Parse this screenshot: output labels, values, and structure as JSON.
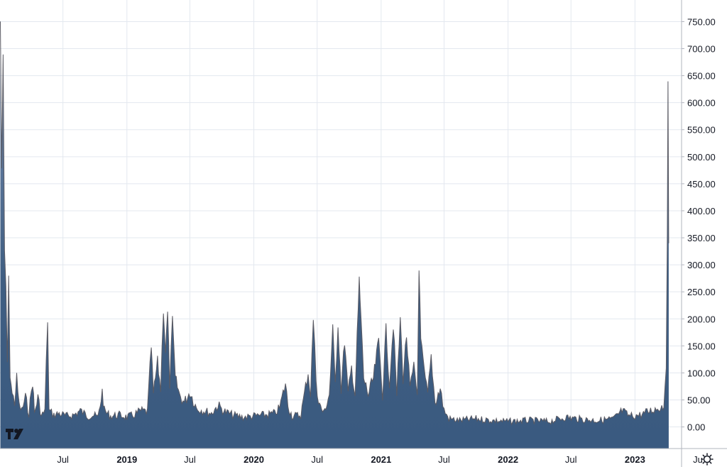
{
  "chart_data": {
    "type": "area",
    "title": "",
    "xlabel": "",
    "ylabel": "",
    "ylim": [
      -40,
      790
    ],
    "xlim": [
      "2018-01-01",
      "2023-05-15"
    ],
    "grid": true,
    "series": [
      {
        "name": "",
        "color": "#3f5e82",
        "line_color": "#5a5a63",
        "points": [
          [
            "2018-01-02",
            750
          ],
          [
            "2018-01-06",
            480
          ],
          [
            "2018-01-10",
            680
          ],
          [
            "2018-01-14",
            320
          ],
          [
            "2018-01-18",
            260
          ],
          [
            "2018-01-22",
            120
          ],
          [
            "2018-01-26",
            270
          ],
          [
            "2018-01-30",
            100
          ],
          [
            "2018-02-05",
            60
          ],
          [
            "2018-02-12",
            45
          ],
          [
            "2018-02-18",
            90
          ],
          [
            "2018-02-25",
            40
          ],
          [
            "2018-03-05",
            30
          ],
          [
            "2018-03-15",
            55
          ],
          [
            "2018-03-25",
            25
          ],
          [
            "2018-04-05",
            85
          ],
          [
            "2018-04-10",
            25
          ],
          [
            "2018-04-20",
            55
          ],
          [
            "2018-04-30",
            20
          ],
          [
            "2018-05-10",
            30
          ],
          [
            "2018-05-18",
            200
          ],
          [
            "2018-05-22",
            30
          ],
          [
            "2018-06-05",
            22
          ],
          [
            "2018-06-20",
            25
          ],
          [
            "2018-07-10",
            20
          ],
          [
            "2018-08-01",
            22
          ],
          [
            "2018-08-20",
            30
          ],
          [
            "2018-09-10",
            20
          ],
          [
            "2018-09-25",
            22
          ],
          [
            "2018-10-10",
            18
          ],
          [
            "2018-10-22",
            65
          ],
          [
            "2018-10-28",
            30
          ],
          [
            "2018-11-15",
            20
          ],
          [
            "2018-12-10",
            22
          ],
          [
            "2019-01-01",
            18
          ],
          [
            "2019-01-20",
            22
          ],
          [
            "2019-02-10",
            30
          ],
          [
            "2019-03-01",
            28
          ],
          [
            "2019-03-12",
            150
          ],
          [
            "2019-03-18",
            60
          ],
          [
            "2019-03-30",
            120
          ],
          [
            "2019-04-08",
            70
          ],
          [
            "2019-04-16",
            220
          ],
          [
            "2019-04-22",
            140
          ],
          [
            "2019-04-28",
            210
          ],
          [
            "2019-05-04",
            80
          ],
          [
            "2019-05-12",
            195
          ],
          [
            "2019-05-20",
            90
          ],
          [
            "2019-06-01",
            60
          ],
          [
            "2019-06-15",
            45
          ],
          [
            "2019-07-01",
            65
          ],
          [
            "2019-07-20",
            35
          ],
          [
            "2019-08-10",
            30
          ],
          [
            "2019-09-01",
            25
          ],
          [
            "2019-09-20",
            40
          ],
          [
            "2019-10-10",
            28
          ],
          [
            "2019-11-01",
            22
          ],
          [
            "2019-12-01",
            18
          ],
          [
            "2020-01-01",
            20
          ],
          [
            "2020-02-01",
            22
          ],
          [
            "2020-03-01",
            25
          ],
          [
            "2020-03-15",
            35
          ],
          [
            "2020-04-01",
            80
          ],
          [
            "2020-04-08",
            40
          ],
          [
            "2020-04-20",
            20
          ],
          [
            "2020-05-15",
            22
          ],
          [
            "2020-06-05",
            100
          ],
          [
            "2020-06-12",
            60
          ],
          [
            "2020-06-20",
            200
          ],
          [
            "2020-06-28",
            90
          ],
          [
            "2020-07-05",
            45
          ],
          [
            "2020-07-20",
            25
          ],
          [
            "2020-08-05",
            60
          ],
          [
            "2020-08-15",
            180
          ],
          [
            "2020-08-22",
            80
          ],
          [
            "2020-08-30",
            190
          ],
          [
            "2020-09-08",
            70
          ],
          [
            "2020-09-18",
            160
          ],
          [
            "2020-09-28",
            60
          ],
          [
            "2020-10-08",
            110
          ],
          [
            "2020-10-18",
            60
          ],
          [
            "2020-10-30",
            270
          ],
          [
            "2020-11-04",
            200
          ],
          [
            "2020-11-12",
            90
          ],
          [
            "2020-11-25",
            60
          ],
          [
            "2020-12-10",
            90
          ],
          [
            "2020-12-25",
            160
          ],
          [
            "2021-01-05",
            60
          ],
          [
            "2021-01-15",
            180
          ],
          [
            "2021-01-25",
            80
          ],
          [
            "2021-02-05",
            190
          ],
          [
            "2021-02-15",
            60
          ],
          [
            "2021-02-25",
            200
          ],
          [
            "2021-03-05",
            90
          ],
          [
            "2021-03-15",
            170
          ],
          [
            "2021-03-25",
            70
          ],
          [
            "2021-04-05",
            110
          ],
          [
            "2021-04-15",
            60
          ],
          [
            "2021-04-20",
            300
          ],
          [
            "2021-04-25",
            160
          ],
          [
            "2021-05-05",
            100
          ],
          [
            "2021-05-15",
            60
          ],
          [
            "2021-05-25",
            130
          ],
          [
            "2021-06-05",
            45
          ],
          [
            "2021-06-20",
            70
          ],
          [
            "2021-07-01",
            30
          ],
          [
            "2021-07-15",
            15
          ],
          [
            "2021-08-15",
            12
          ],
          [
            "2021-10-01",
            15
          ],
          [
            "2021-11-15",
            12
          ],
          [
            "2022-01-01",
            10
          ],
          [
            "2022-03-01",
            12
          ],
          [
            "2022-05-01",
            10
          ],
          [
            "2022-06-15",
            18
          ],
          [
            "2022-08-01",
            14
          ],
          [
            "2022-09-15",
            12
          ],
          [
            "2022-11-01",
            15
          ],
          [
            "2022-11-25",
            30
          ],
          [
            "2022-12-15",
            20
          ],
          [
            "2023-01-15",
            22
          ],
          [
            "2023-02-15",
            30
          ],
          [
            "2023-03-10",
            35
          ],
          [
            "2023-03-25",
            40
          ],
          [
            "2023-04-01",
            120
          ],
          [
            "2023-04-04",
            340
          ],
          [
            "2023-04-06",
            630
          ],
          [
            "2023-04-08",
            340
          ]
        ]
      }
    ],
    "y_ticks": [
      "0.00",
      "50.00",
      "100.00",
      "150.00",
      "200.00",
      "250.00",
      "300.00",
      "350.00",
      "400.00",
      "450.00",
      "500.00",
      "550.00",
      "600.00",
      "650.00",
      "700.00",
      "750.00"
    ],
    "x_ticks": [
      {
        "label": "Jul",
        "date": "2018-07-01",
        "bold": false
      },
      {
        "label": "2019",
        "date": "2019-01-01",
        "bold": true
      },
      {
        "label": "Jul",
        "date": "2019-07-01",
        "bold": false
      },
      {
        "label": "2020",
        "date": "2020-01-01",
        "bold": true
      },
      {
        "label": "Jul",
        "date": "2020-07-01",
        "bold": false
      },
      {
        "label": "2021",
        "date": "2021-01-01",
        "bold": true
      },
      {
        "label": "Jul",
        "date": "2021-07-01",
        "bold": false
      },
      {
        "label": "2022",
        "date": "2022-01-01",
        "bold": true
      },
      {
        "label": "Jul",
        "date": "2022-07-01",
        "bold": false
      },
      {
        "label": "2023",
        "date": "2023-01-01",
        "bold": true
      },
      {
        "label": "Ju",
        "date": "2023-07-01",
        "bold": false
      }
    ],
    "logo": "tradingview-logo",
    "settings_icon": "gear-icon"
  }
}
